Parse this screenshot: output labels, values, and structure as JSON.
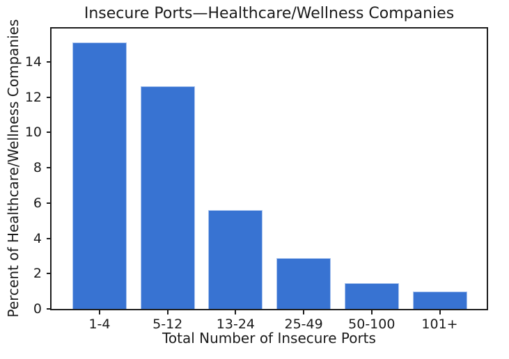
{
  "chart_data": {
    "type": "bar",
    "title": "Insecure Ports—Healthcare/Wellness Companies",
    "xlabel": "Total Number of Insecure Ports",
    "ylabel": "Percent of Healthcare/Wellness Companies",
    "categories": [
      "1-4",
      "5-12",
      "13-24",
      "25-49",
      "50-100",
      "101+"
    ],
    "values": [
      15.1,
      12.6,
      5.6,
      2.9,
      1.45,
      1.0
    ],
    "yticks": [
      0,
      2,
      4,
      6,
      8,
      10,
      12,
      14
    ],
    "ylim": [
      0,
      15.89
    ],
    "grid": false,
    "legend": "none",
    "bar_color": "#3873d2",
    "bar_edge_color": "#aac4ee",
    "axis_color": "#1c1c1c",
    "text_color": "#1a1a1a",
    "background_color": "#ffffff"
  }
}
